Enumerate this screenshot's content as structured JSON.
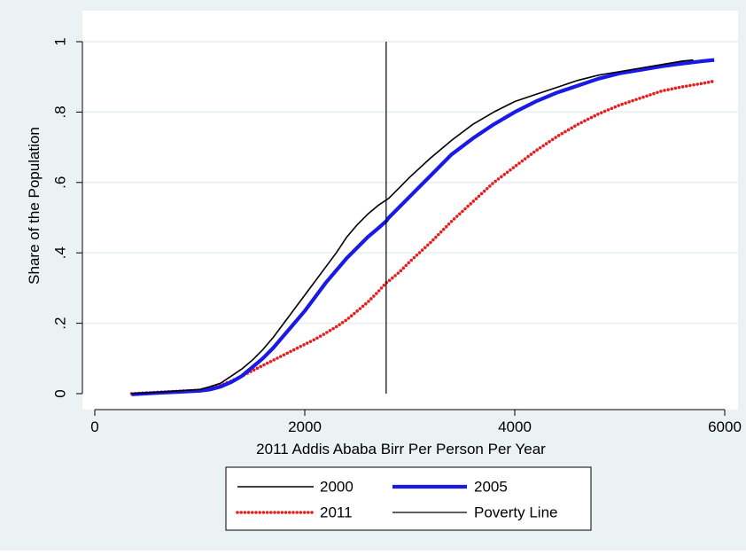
{
  "chart_data": {
    "type": "line",
    "title": "",
    "xlabel": "2011 Addis Ababa Birr Per Person Per Year",
    "ylabel": "Share of the Population",
    "xlim": [
      0,
      6000
    ],
    "ylim": [
      0,
      1
    ],
    "x_ticks": [
      0,
      2000,
      4000,
      6000
    ],
    "x_tick_labels": [
      "0",
      "2000",
      "4000",
      "6000"
    ],
    "y_ticks": [
      0,
      0.2,
      0.4,
      0.6,
      0.8,
      1
    ],
    "y_tick_labels": [
      "0",
      ".2",
      ".4",
      ".6",
      ".8",
      "1"
    ],
    "grid": "horizontal",
    "legend_position": "bottom",
    "colors": {
      "background": "#eaf2f3",
      "plot_background": "#ffffff",
      "gridline": "#eaf2f3",
      "series_2000": "#000000",
      "series_2005": "#1a1ae6",
      "series_2011": "#e61e1e",
      "poverty_line": "#000000"
    },
    "series": [
      {
        "name": "2000",
        "style": "thin-solid",
        "x": [
          350,
          600,
          800,
          1000,
          1100,
          1200,
          1300,
          1400,
          1500,
          1600,
          1700,
          1800,
          1900,
          2000,
          2100,
          2200,
          2300,
          2400,
          2500,
          2600,
          2700,
          2775,
          2800,
          2900,
          3000,
          3200,
          3400,
          3600,
          3800,
          4000,
          4200,
          4400,
          4600,
          4800,
          5000,
          5200,
          5400,
          5600,
          5700
        ],
        "y": [
          0.0,
          0.004,
          0.008,
          0.012,
          0.02,
          0.03,
          0.05,
          0.07,
          0.095,
          0.125,
          0.16,
          0.2,
          0.24,
          0.28,
          0.32,
          0.36,
          0.4,
          0.445,
          0.48,
          0.51,
          0.535,
          0.55,
          0.555,
          0.585,
          0.615,
          0.67,
          0.72,
          0.765,
          0.8,
          0.83,
          0.85,
          0.87,
          0.89,
          0.905,
          0.915,
          0.925,
          0.935,
          0.945,
          0.948
        ]
      },
      {
        "name": "2005",
        "style": "thick-solid",
        "x": [
          350,
          600,
          800,
          1000,
          1100,
          1200,
          1300,
          1400,
          1500,
          1600,
          1700,
          1800,
          1900,
          2000,
          2100,
          2200,
          2300,
          2400,
          2500,
          2600,
          2700,
          2775,
          2800,
          2900,
          3000,
          3200,
          3400,
          3600,
          3800,
          4000,
          4200,
          4400,
          4600,
          4800,
          5000,
          5200,
          5400,
          5600,
          5800,
          5900
        ],
        "y": [
          -0.002,
          0.002,
          0.005,
          0.008,
          0.012,
          0.02,
          0.033,
          0.05,
          0.075,
          0.1,
          0.13,
          0.165,
          0.2,
          0.235,
          0.275,
          0.315,
          0.35,
          0.385,
          0.415,
          0.445,
          0.47,
          0.49,
          0.5,
          0.53,
          0.56,
          0.62,
          0.68,
          0.725,
          0.765,
          0.8,
          0.83,
          0.855,
          0.875,
          0.895,
          0.91,
          0.92,
          0.93,
          0.938,
          0.945,
          0.948
        ]
      },
      {
        "name": "2011",
        "style": "red-dotted",
        "x": [
          350,
          600,
          800,
          1000,
          1100,
          1200,
          1300,
          1400,
          1500,
          1600,
          1700,
          1800,
          1900,
          2000,
          2100,
          2200,
          2300,
          2400,
          2500,
          2600,
          2700,
          2775,
          2800,
          2900,
          3000,
          3200,
          3400,
          3600,
          3800,
          4000,
          4200,
          4400,
          4600,
          4800,
          5000,
          5200,
          5400,
          5600,
          5800,
          5900
        ],
        "y": [
          0.0,
          0.004,
          0.007,
          0.01,
          0.016,
          0.024,
          0.036,
          0.05,
          0.065,
          0.08,
          0.095,
          0.11,
          0.125,
          0.14,
          0.155,
          0.172,
          0.19,
          0.21,
          0.235,
          0.26,
          0.29,
          0.315,
          0.32,
          0.345,
          0.375,
          0.43,
          0.49,
          0.545,
          0.6,
          0.645,
          0.69,
          0.73,
          0.765,
          0.795,
          0.82,
          0.84,
          0.86,
          0.872,
          0.882,
          0.888
        ]
      }
    ],
    "reference_lines": [
      {
        "name": "Poverty Line",
        "orientation": "vertical",
        "x": 2775
      }
    ],
    "legend": {
      "entries": [
        {
          "label": "2000",
          "style": "thin-solid",
          "color": "#000000"
        },
        {
          "label": "2005",
          "style": "thick-solid",
          "color": "#1a1ae6"
        },
        {
          "label": "2011",
          "style": "red-dotted",
          "color": "#e61e1e"
        },
        {
          "label": "Poverty Line",
          "style": "thin-solid",
          "color": "#000000"
        }
      ]
    }
  }
}
